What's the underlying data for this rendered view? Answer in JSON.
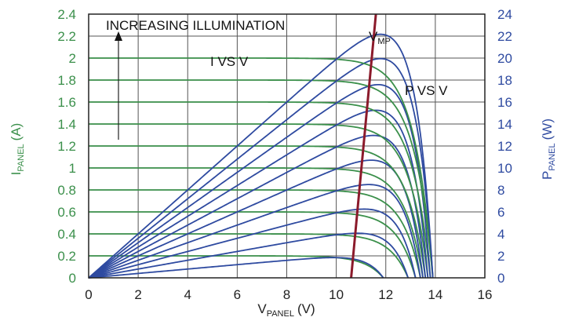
{
  "chart_data": {
    "type": "line",
    "xlabel_main": "V",
    "xlabel_sub": "PANEL",
    "xlabel_unit": "(V)",
    "ylabel_left_main": "I",
    "ylabel_left_sub": "PANEL",
    "ylabel_left_unit": "(A)",
    "ylabel_right_main": "P",
    "ylabel_right_sub": "PANEL",
    "ylabel_right_unit": "(W)",
    "xlim": [
      0,
      16
    ],
    "ylim_left": [
      0,
      2.4
    ],
    "ylim_right": [
      0,
      24
    ],
    "x_ticks": [
      "0",
      "2",
      "4",
      "6",
      "8",
      "10",
      "12",
      "14",
      "16"
    ],
    "y_left_ticks": [
      "0",
      "0.2",
      "0.4",
      "0.6",
      "0.8",
      "1",
      "1.2",
      "1.4",
      "1.6",
      "1.8",
      "2",
      "2.2",
      "2.4"
    ],
    "y_right_ticks": [
      "0",
      "2",
      "4",
      "6",
      "8",
      "10",
      "12",
      "14",
      "16",
      "18",
      "20",
      "22",
      "24"
    ],
    "grid": true,
    "annotations": {
      "illumination": "INCREASING ILLUMINATION",
      "iv": "I VS V",
      "pv": "P VS V",
      "vmp_main": "V",
      "vmp_sub": "MP"
    },
    "colors": {
      "iv": "#3a8f4a",
      "pv": "#2e4aa0",
      "vmp": "#8b1a2b",
      "left_axis": "#3a8f4a",
      "right_axis": "#2e4aa0"
    },
    "iv_curves": [
      {
        "isc": 0.2,
        "voc": 11.9
      },
      {
        "isc": 0.4,
        "voc": 12.9
      },
      {
        "isc": 0.6,
        "voc": 13.2
      },
      {
        "isc": 0.8,
        "voc": 13.4
      },
      {
        "isc": 1.0,
        "voc": 13.5
      },
      {
        "isc": 1.2,
        "voc": 13.6
      },
      {
        "isc": 1.4,
        "voc": 13.7
      },
      {
        "isc": 1.6,
        "voc": 13.8
      },
      {
        "isc": 1.8,
        "voc": 13.9
      },
      {
        "isc": 2.0,
        "voc": 13.9
      }
    ],
    "vmp_line": [
      [
        10.6,
        0
      ],
      [
        11.6,
        2.4
      ]
    ]
  }
}
